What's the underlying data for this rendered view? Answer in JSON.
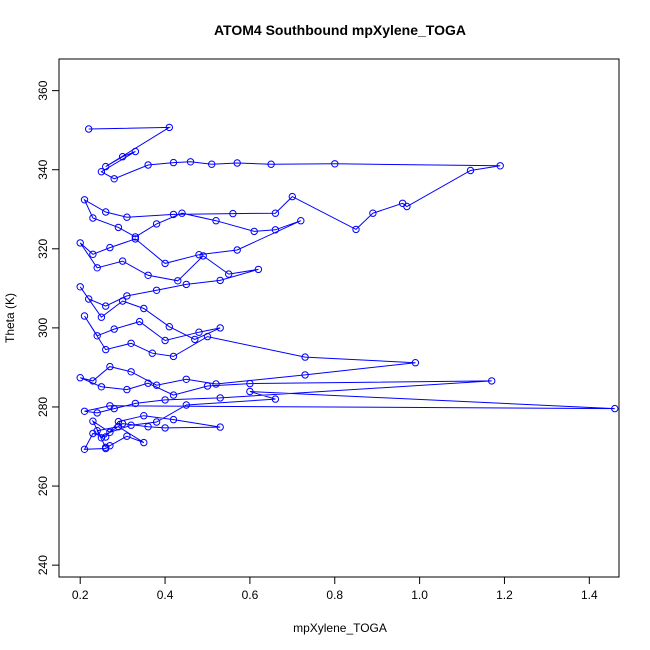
{
  "chart_data": {
    "type": "line",
    "title": "ATOM4 Southbound mpXylene_TOGA",
    "xlabel": "mpXylene_TOGA",
    "ylabel": "Theta (K)",
    "xlim": [
      0.15,
      1.47
    ],
    "ylim": [
      237,
      368
    ],
    "x_ticks": [
      "0.2",
      "0.4",
      "0.6",
      "0.8",
      "1.0",
      "1.2",
      "1.4"
    ],
    "y_ticks": [
      "240",
      "260",
      "280",
      "300",
      "320",
      "340",
      "360"
    ],
    "grid": false,
    "series": [
      {
        "color": "#0000ff",
        "marker": "open-circle",
        "x": [
          0.22,
          0.41,
          0.26,
          0.3,
          0.33,
          0.25,
          0.28,
          0.36,
          0.42,
          0.46,
          0.51,
          0.57,
          0.65,
          0.8,
          1.19,
          1.12,
          0.97,
          0.96,
          0.89,
          0.85,
          0.7,
          0.66,
          0.56,
          0.42,
          0.31,
          0.26,
          0.21,
          0.23,
          0.29,
          0.33,
          0.38,
          0.44,
          0.52,
          0.61,
          0.66,
          0.72,
          0.57,
          0.48,
          0.4,
          0.33,
          0.27,
          0.23,
          0.2,
          0.24,
          0.3,
          0.36,
          0.43,
          0.49,
          0.55,
          0.62,
          0.53,
          0.45,
          0.38,
          0.31,
          0.26,
          0.22,
          0.2,
          0.25,
          0.3,
          0.35,
          0.41,
          0.47,
          0.53,
          0.48,
          0.4,
          0.34,
          0.28,
          0.24,
          0.21,
          0.26,
          0.32,
          0.37,
          0.42,
          0.5,
          0.73,
          0.99,
          0.73,
          0.52,
          0.45,
          0.38,
          0.32,
          0.27,
          0.23,
          0.2,
          0.25,
          0.31,
          0.36,
          0.42,
          0.5,
          0.6,
          1.17,
          0.53,
          0.4,
          0.33,
          0.28,
          0.24,
          0.21,
          0.27,
          1.46,
          0.6,
          0.66,
          0.45,
          0.38,
          0.32,
          0.27,
          0.23,
          0.25,
          0.3,
          0.36,
          0.4,
          0.53,
          0.42,
          0.35,
          0.29,
          0.26,
          0.23,
          0.21,
          0.26,
          0.27,
          0.31,
          0.35,
          0.29,
          0.24,
          0.26
        ],
        "y": [
          350.3,
          350.7,
          340.8,
          343.3,
          344.6,
          339.5,
          337.7,
          341.2,
          341.8,
          342.0,
          341.4,
          341.7,
          341.4,
          341.5,
          341.0,
          339.8,
          330.7,
          331.5,
          329.0,
          324.9,
          333.2,
          329.0,
          328.9,
          328.7,
          328.0,
          329.3,
          332.4,
          327.8,
          325.4,
          323.0,
          326.3,
          329.0,
          327.1,
          324.4,
          324.8,
          327.1,
          319.7,
          318.5,
          316.3,
          322.5,
          320.3,
          318.6,
          321.5,
          315.2,
          316.9,
          313.3,
          311.9,
          318.2,
          313.6,
          314.8,
          312.0,
          311.0,
          309.5,
          308.1,
          305.5,
          307.3,
          310.4,
          302.7,
          306.8,
          304.9,
          300.3,
          297.1,
          300.0,
          298.9,
          296.8,
          301.6,
          299.7,
          298.0,
          303.0,
          294.5,
          296.1,
          293.6,
          292.8,
          297.8,
          292.6,
          291.2,
          288.1,
          285.8,
          287.0,
          285.5,
          288.9,
          290.2,
          286.6,
          287.4,
          285.1,
          284.4,
          286.0,
          283.0,
          285.3,
          285.9,
          286.6,
          282.3,
          281.8,
          280.9,
          279.6,
          278.5,
          278.9,
          280.3,
          279.6,
          283.9,
          282.0,
          280.5,
          276.2,
          275.4,
          273.6,
          276.4,
          272.2,
          275.8,
          275.0,
          274.7,
          274.9,
          276.8,
          277.8,
          276.3,
          272.4,
          273.3,
          269.3,
          269.5,
          270.2,
          272.6,
          271.0,
          275.0,
          274.0,
          269.8
        ]
      }
    ]
  }
}
